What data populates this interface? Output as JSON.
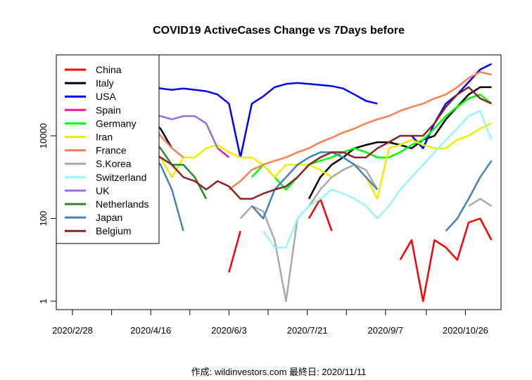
{
  "chart_data": {
    "type": "line",
    "title": "COVID19 ActiveCases Change vs 7Days before",
    "footer": "作成: wildinvestors.com 最終日: 2020/11/11",
    "xlabel": "",
    "ylabel": "",
    "y_scale": "log",
    "ylim": [
      0.6,
      900000
    ],
    "y_ticks": [
      1,
      100,
      10000
    ],
    "y_tick_labels": [
      "1",
      "100",
      "10000"
    ],
    "xlim": [
      "2020-02-20",
      "2020-11-17"
    ],
    "x_major_ticks": [
      "2020-02-28",
      "2020-04-16",
      "2020-06-03",
      "2020-07-21",
      "2020-09-07",
      "2020-10-26"
    ],
    "x_tick_labels": [
      "2020/2/28",
      "2020/4/16",
      "2020/6/3",
      "2020/7/21",
      "2020/9/7",
      "2020/10/26"
    ],
    "x_minor_ticks": [
      "2020-03-23",
      "2020-05-10",
      "2020-06-27",
      "2020-08-14",
      "2020-10-02"
    ],
    "grid": false,
    "legend_placement": "top-left",
    "dates": [
      "2020-03-04",
      "2020-03-11",
      "2020-03-18",
      "2020-03-25",
      "2020-04-01",
      "2020-04-08",
      "2020-04-15",
      "2020-04-22",
      "2020-04-29",
      "2020-05-06",
      "2020-05-13",
      "2020-05-20",
      "2020-05-27",
      "2020-06-03",
      "2020-06-10",
      "2020-06-17",
      "2020-06-24",
      "2020-07-01",
      "2020-07-08",
      "2020-07-15",
      "2020-07-22",
      "2020-07-29",
      "2020-08-05",
      "2020-08-12",
      "2020-08-19",
      "2020-08-26",
      "2020-09-02",
      "2020-09-09",
      "2020-09-16",
      "2020-09-23",
      "2020-09-30",
      "2020-10-07",
      "2020-10-14",
      "2020-10-21",
      "2020-10-28",
      "2020-11-04",
      "2020-11-11"
    ],
    "series": [
      {
        "name": "China",
        "color": "#FF0000",
        "values": [
          null,
          null,
          null,
          null,
          null,
          null,
          null,
          null,
          null,
          null,
          null,
          null,
          null,
          5,
          50,
          null,
          null,
          null,
          null,
          null,
          100,
          300,
          50,
          null,
          null,
          null,
          null,
          null,
          10,
          30,
          1,
          30,
          20,
          10,
          80,
          100,
          30
        ]
      },
      {
        "name": "Italy",
        "color": "#000000",
        "values": [
          3000,
          10000,
          30000,
          40000,
          40000,
          35000,
          25000,
          15000,
          5000,
          null,
          null,
          null,
          null,
          null,
          null,
          null,
          null,
          null,
          null,
          null,
          300,
          1000,
          2000,
          3000,
          5000,
          6000,
          7000,
          7000,
          6000,
          5000,
          8000,
          10000,
          25000,
          50000,
          100000,
          150000,
          150000
        ]
      },
      {
        "name": "USA",
        "color": "#0000FF",
        "values": [
          200,
          2000,
          20000,
          80000,
          150000,
          190000,
          180000,
          140000,
          130000,
          140000,
          130000,
          120000,
          100000,
          60000,
          3000,
          60000,
          90000,
          150000,
          180000,
          190000,
          180000,
          170000,
          160000,
          140000,
          100000,
          70000,
          60000,
          null,
          null,
          10000,
          5000,
          20000,
          60000,
          100000,
          200000,
          400000,
          550000
        ]
      },
      {
        "name": "Spain",
        "color": "#FF1493",
        "values": [
          null,
          1000,
          10000,
          30000,
          30000,
          20000,
          10000,
          5000,
          null,
          null,
          null,
          null,
          5000,
          3000,
          null,
          null,
          null,
          null,
          null,
          null,
          null,
          null,
          null,
          null,
          null,
          null,
          null,
          null,
          null,
          null,
          null,
          null,
          null,
          null,
          null,
          null,
          null
        ]
      },
      {
        "name": "Germany",
        "color": "#00FF00",
        "values": [
          null,
          1000,
          10000,
          30000,
          30000,
          10000,
          1000,
          null,
          null,
          null,
          null,
          null,
          null,
          null,
          null,
          1000,
          2000,
          1000,
          500,
          1000,
          2000,
          2500,
          3000,
          4000,
          5000,
          4000,
          3000,
          3000,
          4000,
          6000,
          8000,
          15000,
          30000,
          50000,
          80000,
          100000,
          60000
        ]
      },
      {
        "name": "Iran",
        "color": "#EEEE00",
        "values": [
          3000,
          5000,
          5000,
          10000,
          20000,
          10000,
          5000,
          3000,
          1000,
          3000,
          3000,
          5000,
          6000,
          4000,
          3000,
          3000,
          2000,
          1000,
          2000,
          2000,
          2000,
          1500,
          1000,
          1500,
          2000,
          1000,
          300,
          5000,
          6000,
          8000,
          6000,
          5000,
          5000,
          8000,
          10000,
          15000,
          20000
        ]
      },
      {
        "name": "France",
        "color": "#FF7F50",
        "values": [
          500,
          2000,
          5000,
          15000,
          30000,
          40000,
          20000,
          10000,
          5000,
          3000,
          null,
          null,
          null,
          500,
          800,
          1500,
          2000,
          2500,
          3000,
          4000,
          5000,
          7000,
          9000,
          12000,
          15000,
          20000,
          25000,
          30000,
          40000,
          50000,
          60000,
          80000,
          100000,
          150000,
          250000,
          350000,
          300000
        ]
      },
      {
        "name": "S.Korea",
        "color": "#A9A9A9",
        "values": [
          5000,
          2000,
          500,
          200,
          null,
          null,
          null,
          null,
          null,
          null,
          null,
          null,
          null,
          null,
          100,
          200,
          150,
          30,
          1,
          100,
          200,
          500,
          1000,
          1500,
          2000,
          1500,
          500,
          null,
          null,
          null,
          null,
          null,
          null,
          null,
          200,
          300,
          200
        ]
      },
      {
        "name": "Switzerland",
        "color": "#98F5FF",
        "values": [
          null,
          500,
          3000,
          8000,
          3000,
          1000,
          null,
          null,
          null,
          null,
          null,
          null,
          null,
          null,
          null,
          null,
          50,
          20,
          20,
          100,
          200,
          300,
          500,
          400,
          300,
          200,
          100,
          200,
          500,
          1000,
          2000,
          4000,
          8000,
          15000,
          30000,
          40000,
          8000
        ]
      },
      {
        "name": "UK",
        "color": "#9370DB",
        "values": [
          null,
          300,
          2000,
          10000,
          20000,
          30000,
          30000,
          30000,
          25000,
          30000,
          30000,
          20000,
          5000,
          null,
          null,
          null,
          null,
          null,
          null,
          null,
          null,
          null,
          null,
          null,
          null,
          null,
          null,
          null,
          null,
          null,
          null,
          null,
          null,
          null,
          null,
          null,
          null
        ]
      },
      {
        "name": "Netherlands",
        "color": "#228B22",
        "values": [
          null,
          200,
          1000,
          3000,
          5000,
          7000,
          7000,
          5000,
          2000,
          2000,
          1000,
          300,
          null,
          null,
          null,
          null,
          null,
          null,
          null,
          null,
          null,
          null,
          null,
          null,
          null,
          null,
          null,
          null,
          null,
          null,
          null,
          null,
          null,
          null,
          null,
          null,
          null
        ]
      },
      {
        "name": "Japan",
        "color": "#4682B4",
        "values": [
          null,
          100,
          200,
          500,
          1000,
          3000,
          4000,
          2000,
          500,
          50,
          null,
          null,
          null,
          null,
          null,
          200,
          100,
          500,
          1000,
          2000,
          3000,
          4000,
          4000,
          3000,
          2000,
          1000,
          500,
          null,
          null,
          null,
          null,
          null,
          50,
          100,
          300,
          1000,
          2500
        ]
      },
      {
        "name": "Belgium",
        "color": "#8B2323",
        "values": [
          null,
          100,
          1000,
          4000,
          6000,
          6000,
          4000,
          3000,
          2000,
          1000,
          800,
          500,
          800,
          600,
          300,
          300,
          400,
          500,
          600,
          1000,
          2000,
          3000,
          4000,
          4000,
          3000,
          3000,
          5000,
          7000,
          10000,
          10000,
          10000,
          20000,
          50000,
          100000,
          150000,
          80000,
          60000
        ]
      }
    ]
  }
}
